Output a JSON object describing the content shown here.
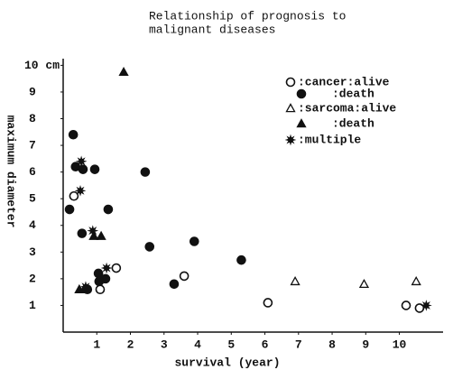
{
  "chart_data": {
    "type": "scatter",
    "title": [
      "Relationship of prognosis to",
      "malignant diseases"
    ],
    "x_label": "survival (year)",
    "y_label": "maximum diameter",
    "xlim": [
      0,
      11.3
    ],
    "ylim": [
      0,
      10.25
    ],
    "xticks": [
      1,
      2,
      3,
      4,
      5,
      6,
      7,
      8,
      9,
      10
    ],
    "yticks": [
      1,
      2,
      3,
      4,
      5,
      6,
      7,
      8,
      9,
      {
        "value": 10,
        "label": "10 cm"
      }
    ],
    "series": [
      {
        "name": ":cancer:alive",
        "color": "#111",
        "marker": "open-circle",
        "x": [
          0.32,
          1.1,
          1.58,
          3.6,
          6.09,
          10.2,
          10.6
        ],
        "y": [
          5.1,
          1.6,
          2.4,
          2.1,
          1.1,
          1.0,
          0.9
        ]
      },
      {
        "name": ":death",
        "color": "#111",
        "marker": "circle",
        "x": [
          0.3,
          0.37,
          0.59,
          0.94,
          0.19,
          0.56,
          1.34,
          2.44,
          2.57,
          3.9,
          5.3,
          3.3,
          1.05,
          1.26,
          1.07,
          0.72
        ],
        "y": [
          7.4,
          6.2,
          6.1,
          6.1,
          4.6,
          3.7,
          4.6,
          6.0,
          3.2,
          3.4,
          2.7,
          1.8,
          2.2,
          2.0,
          1.9,
          1.6
        ]
      },
      {
        "name": ":sarcoma:alive",
        "color": "#111",
        "marker": "open-triangle",
        "x": [
          6.9,
          8.95,
          10.5
        ],
        "y": [
          1.9,
          1.8,
          1.9
        ]
      },
      {
        "name": ":death",
        "color": "#111",
        "marker": "triangle",
        "x": [
          1.8,
          0.91,
          1.13,
          0.48,
          0.62
        ],
        "y": [
          9.75,
          3.6,
          3.6,
          1.6,
          1.6
        ]
      },
      {
        "name": ":multiple",
        "color": "#111",
        "marker": "star",
        "x": [
          0.54,
          0.51,
          0.88,
          1.29,
          0.67,
          10.8
        ],
        "y": [
          6.4,
          5.3,
          3.8,
          2.4,
          1.7,
          1.0
        ]
      }
    ]
  }
}
